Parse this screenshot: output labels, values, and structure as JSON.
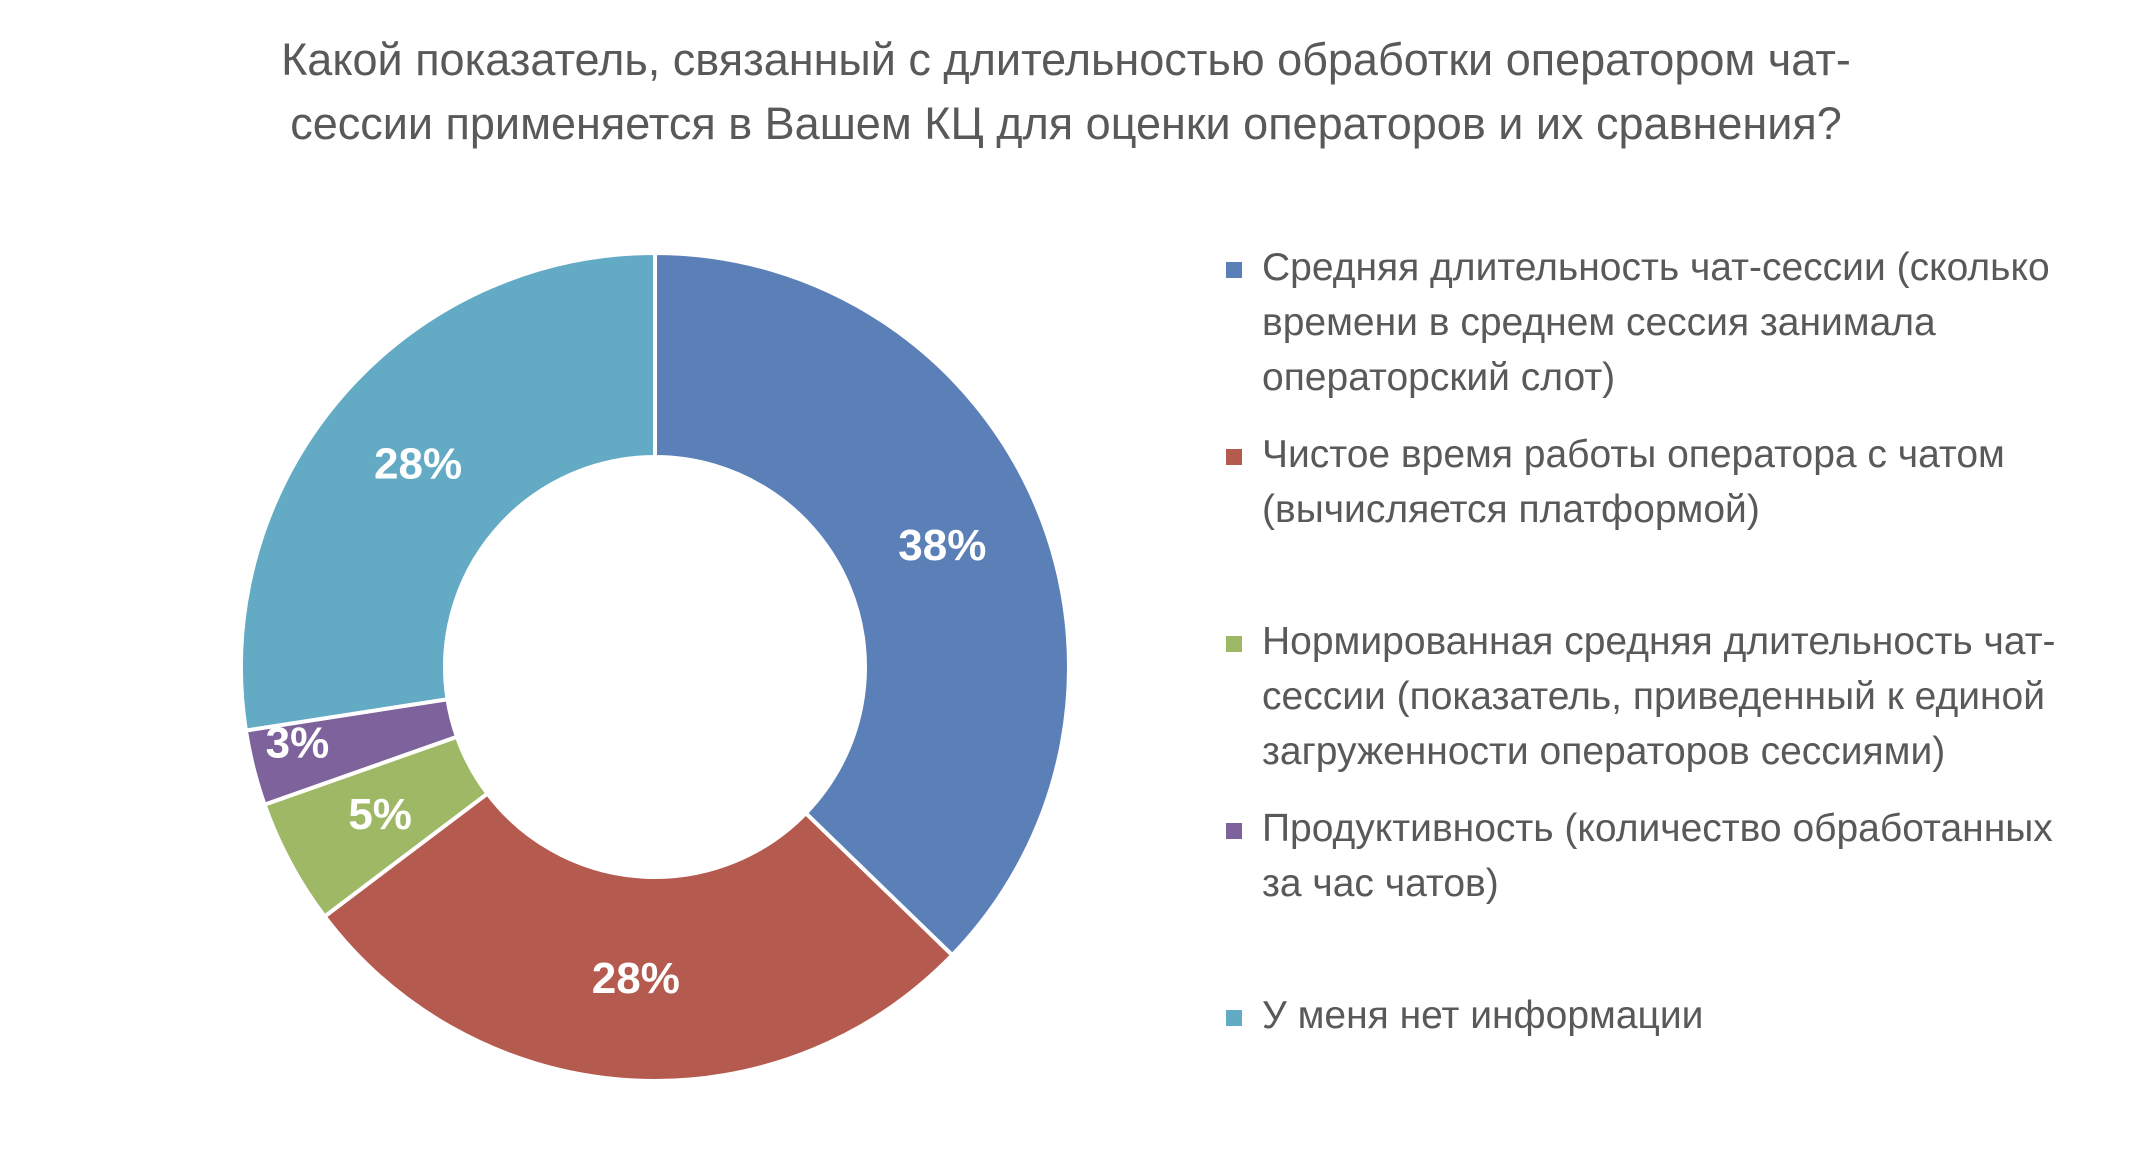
{
  "chart_data": {
    "type": "pie",
    "variant": "donut",
    "title_lines": [
      "Какой показатель, связанный с длительностью обработки оператором чат-",
      "сессии применяется в Вашем КЦ для оценки операторов и их сравнения?"
    ],
    "categories": [
      "Средняя длительность чат-сессии (сколько времени в среднем сессия занимала операторский слот)",
      "Чистое время работы оператора с чатом (вычисляется платформой)",
      "Нормированная средняя длительность чат-сессии (показатель, приведенный к единой загруженности операторов сессиями)",
      "Продуктивность (количество обработанных за час чатов)",
      "У меня нет информации"
    ],
    "legend_lines": [
      [
        "Средняя длительность чат-сессии (сколько",
        "времени в среднем сессия занимала",
        "операторский слот)"
      ],
      [
        "Чистое время работы оператора с чатом",
        "(вычисляется платформой)"
      ],
      [
        "Нормированная средняя длительность чат-",
        "сессии (показатель, приведенный к единой",
        "загруженности операторов сессиями)"
      ],
      [
        "Продуктивность (количество обработанных",
        "за час чатов)"
      ],
      [
        "У меня нет информации"
      ]
    ],
    "values": [
      38,
      28,
      5,
      3,
      28
    ],
    "data_labels": [
      "38%",
      "28%",
      "5%",
      "3%",
      "28%"
    ],
    "unit": "%",
    "colors": [
      "#5B80B8",
      "#B55A4F",
      "#9FB865",
      "#7D629B",
      "#63AAC5"
    ],
    "legend_position": "right",
    "start_angle": "top",
    "direction": "clockwise"
  }
}
